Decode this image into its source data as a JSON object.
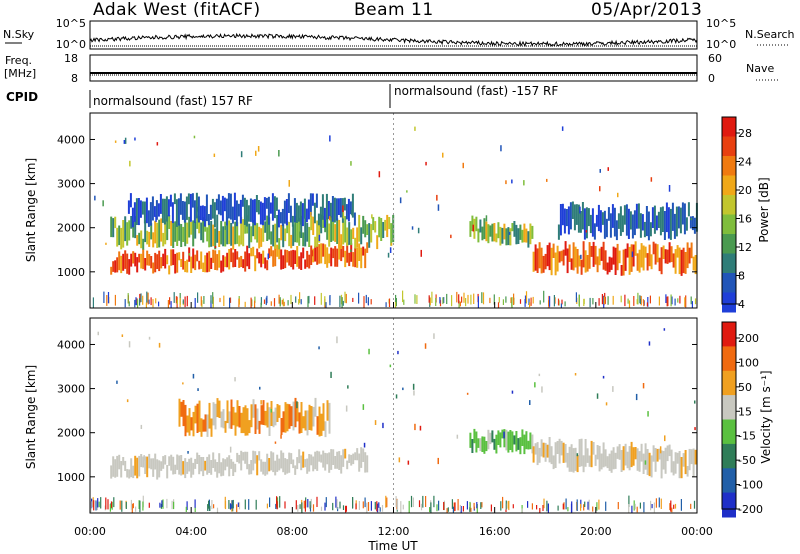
{
  "header": {
    "station": "Adak West (fitACF)",
    "beam": "Beam 11",
    "date": "05/Apr/2013"
  },
  "noise_panel": {
    "left_label": "N.Sky",
    "right_label": "N.Search",
    "left_ticks": [
      "10^5",
      "10^0"
    ],
    "right_ticks": [
      "10^5",
      "10^0"
    ]
  },
  "freq_panel": {
    "left_label_1": "Freq.",
    "left_label_2": "[MHz]",
    "right_label": "Nave",
    "left_ticks": [
      "18",
      "8"
    ],
    "right_ticks": [
      "60",
      "0"
    ]
  },
  "cpid_panel": {
    "label": "CPID",
    "program_1": "normalsound (fast) 157 RF",
    "program_2": "normalsound (fast) -157 RF"
  },
  "chart_data": [
    {
      "type": "heatmap",
      "name": "power",
      "ylabel": "Slant Range [km]",
      "ylim": [
        180,
        4600
      ],
      "yticks": [
        "1000",
        "2000",
        "3000",
        "4000"
      ],
      "xlim": [
        "00:00",
        "24:00"
      ],
      "colorbar": {
        "label": "Power [dB]",
        "ticks": [
          "28",
          "24",
          "20",
          "16",
          "12",
          "8",
          "4"
        ],
        "colors": [
          "#1f3fd8",
          "#2155b8",
          "#2f7d78",
          "#4a9a50",
          "#7fbd3c",
          "#c2c62e",
          "#f0a818",
          "#f07a10",
          "#e84010",
          "#e01a10"
        ]
      },
      "bands": [
        {
          "t_start": 0.8,
          "t_end": 11.0,
          "r_low": 900,
          "r_high": 1500,
          "level": "high"
        },
        {
          "t_start": 0.8,
          "t_end": 12.0,
          "r_low": 1500,
          "r_high": 2300,
          "level": "mid"
        },
        {
          "t_start": 1.5,
          "t_end": 10.5,
          "r_low": 2000,
          "r_high": 2800,
          "level": "low"
        },
        {
          "t_start": 15.0,
          "t_end": 17.5,
          "r_low": 1500,
          "r_high": 2100,
          "level": "mid"
        },
        {
          "t_start": 17.5,
          "t_end": 24.0,
          "r_low": 900,
          "r_high": 1700,
          "level": "high"
        },
        {
          "t_start": 18.5,
          "t_end": 24.0,
          "r_low": 1700,
          "r_high": 2600,
          "level": "low"
        }
      ]
    },
    {
      "type": "heatmap",
      "name": "velocity",
      "xlabel": "Time UT",
      "ylabel": "Slant Range [km]",
      "ylim": [
        180,
        4600
      ],
      "yticks": [
        "1000",
        "2000",
        "3000",
        "4000"
      ],
      "xticks": [
        "00:00",
        "04:00",
        "08:00",
        "12:00",
        "16:00",
        "20:00",
        "00:00"
      ],
      "colorbar": {
        "label": "Velocity [m s⁻¹]",
        "ticks": [
          "200",
          "100",
          "50",
          "15",
          "-15",
          "-50",
          "-100",
          "-200"
        ],
        "colors": [
          "#1f2fc8",
          "#215fa8",
          "#2f7d58",
          "#5ac040",
          "#c8c8c0",
          "#f0a020",
          "#f06a10",
          "#e01a10"
        ]
      },
      "bands": [
        {
          "t_start": 0.8,
          "t_end": 11.0,
          "r_low": 900,
          "r_high": 1500,
          "level": "ground"
        },
        {
          "t_start": 3.5,
          "t_end": 9.5,
          "r_low": 1900,
          "r_high": 2800,
          "level": "away"
        },
        {
          "t_start": 15.0,
          "t_end": 17.5,
          "r_low": 1500,
          "r_high": 2100,
          "level": "toward"
        },
        {
          "t_start": 17.5,
          "t_end": 24.0,
          "r_low": 900,
          "r_high": 1700,
          "level": "ground"
        }
      ]
    }
  ]
}
